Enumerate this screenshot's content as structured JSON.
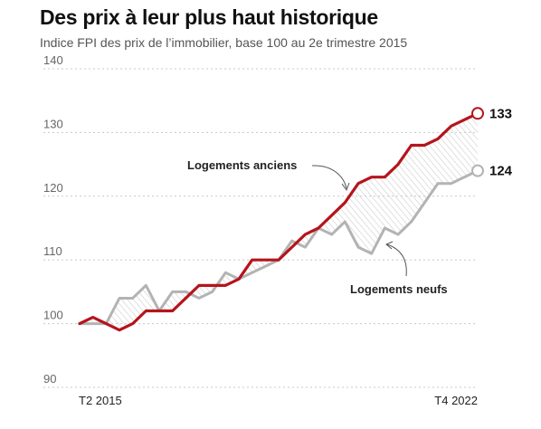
{
  "chart_data": {
    "type": "line",
    "title": "Des prix à leur plus haut historique",
    "subtitle": "Indice FPI des prix de l’immobilier, base 100 au 2e trimestre 2015",
    "xlabel": "",
    "ylabel": "",
    "x": [
      "T2 2015",
      "T3 2015",
      "T4 2015",
      "T1 2016",
      "T2 2016",
      "T3 2016",
      "T4 2016",
      "T1 2017",
      "T2 2017",
      "T3 2017",
      "T4 2017",
      "T1 2018",
      "T2 2018",
      "T3 2018",
      "T4 2018",
      "T1 2019",
      "T2 2019",
      "T3 2019",
      "T4 2019",
      "T1 2020",
      "T2 2020",
      "T3 2020",
      "T4 2020",
      "T1 2021",
      "T2 2021",
      "T3 2021",
      "T4 2021",
      "T1 2022",
      "T2 2022",
      "T3 2022",
      "T4 2022"
    ],
    "x_tick_labels": [
      "T2 2015",
      "T4 2022"
    ],
    "ylim": [
      90,
      140
    ],
    "yticks": [
      90,
      100,
      110,
      120,
      130,
      140
    ],
    "grid": "horizontal dashed",
    "series": [
      {
        "name": "Logements anciens",
        "color": "#b5141c",
        "values": [
          100,
          101,
          100,
          99,
          100,
          102,
          102,
          102,
          104,
          106,
          106,
          106,
          107,
          110,
          110,
          110,
          112,
          114,
          115,
          117,
          119,
          122,
          123,
          123,
          125,
          128,
          128,
          129,
          131,
          132,
          133
        ],
        "end_label": "133"
      },
      {
        "name": "Logements neufs",
        "color": "#b3b3b3",
        "values": [
          100,
          100,
          100,
          104,
          104,
          106,
          102,
          105,
          105,
          104,
          105,
          108,
          107,
          108,
          109,
          110,
          113,
          112,
          115,
          114,
          116,
          112,
          111,
          115,
          114,
          116,
          119,
          122,
          122,
          123,
          124
        ],
        "end_label": "124"
      }
    ],
    "fill_between": "hatched gray"
  }
}
